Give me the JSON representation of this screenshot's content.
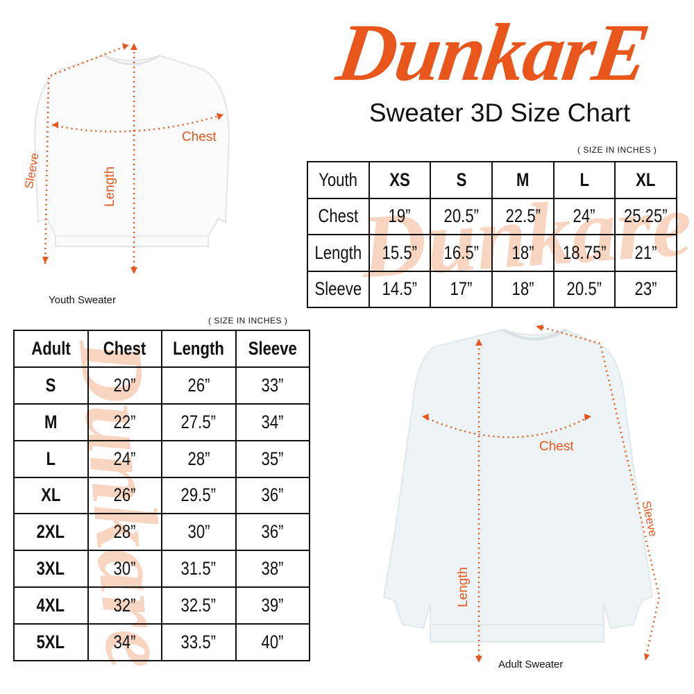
{
  "brand": {
    "logo_text": "DunkarE",
    "accent": "#e8561c",
    "watermark": "Dunkare"
  },
  "title": "Sweater 3D Size Chart",
  "units_note": "( SIZE IN INCHES )",
  "youth": {
    "caption": "Youth Sweater",
    "labels": {
      "chest": "Chest",
      "length": "Length",
      "sleeve": "Sleeve"
    },
    "table": {
      "header": [
        "Youth",
        "XS",
        "S",
        "M",
        "L",
        "XL"
      ],
      "rows": [
        [
          "Chest",
          "19”",
          "20.5”",
          "22.5”",
          "24”",
          "25.25”"
        ],
        [
          "Length",
          "15.5”",
          "16.5”",
          "18”",
          "18.75”",
          "21”"
        ],
        [
          "Sleeve",
          "14.5”",
          "17”",
          "18”",
          "20.5”",
          "23”"
        ]
      ]
    }
  },
  "adult": {
    "caption": "Adult Sweater",
    "labels": {
      "chest": "Chest",
      "length": "Length",
      "sleeve": "Sleeve"
    },
    "table": {
      "header": [
        "Adult",
        "Chest",
        "Length",
        "Sleeve"
      ],
      "rows": [
        [
          "S",
          "20”",
          "26”",
          "33”"
        ],
        [
          "M",
          "22”",
          "27.5”",
          "34”"
        ],
        [
          "L",
          "24”",
          "28”",
          "35”"
        ],
        [
          "XL",
          "26”",
          "29.5”",
          "36”"
        ],
        [
          "2XL",
          "28”",
          "30”",
          "36”"
        ],
        [
          "3XL",
          "30”",
          "31.5”",
          "38”"
        ],
        [
          "4XL",
          "32”",
          "32.5”",
          "39”"
        ],
        [
          "5XL",
          "34”",
          "33.5”",
          "40”"
        ]
      ]
    }
  }
}
